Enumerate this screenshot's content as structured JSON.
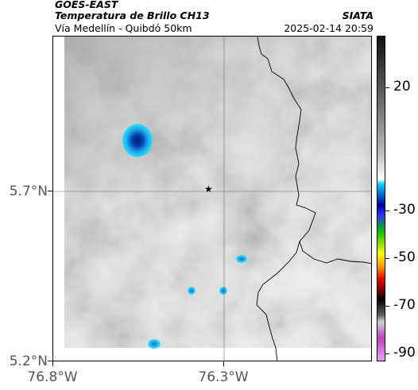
{
  "header": {
    "satellite": "GOES-EAST",
    "product": "Temperatura de Brillo CH13",
    "region": "Vía Medellín - Quibdó 50km",
    "org": "SIATA",
    "datetime": "2025-02-14 20:59"
  },
  "map": {
    "lat_ticks": [
      "5.7°N",
      "5.2°N"
    ],
    "lon_ticks": [
      "76.8°W",
      "76.3°W"
    ],
    "station_icon": "star-icon",
    "station_symbol": "★"
  },
  "colorbar": {
    "labels": [
      "20",
      "-30",
      "-50",
      "-70",
      "-90"
    ],
    "colors": {
      "gray_top": "#111111",
      "gray_bottom": "#ffffff",
      "cyan": "#00d4ff",
      "blue": "#0000a0",
      "green": "#00c000",
      "yellow": "#ffff00",
      "red": "#e00000",
      "black": "#000000",
      "magenta": "#c040c0"
    }
  }
}
